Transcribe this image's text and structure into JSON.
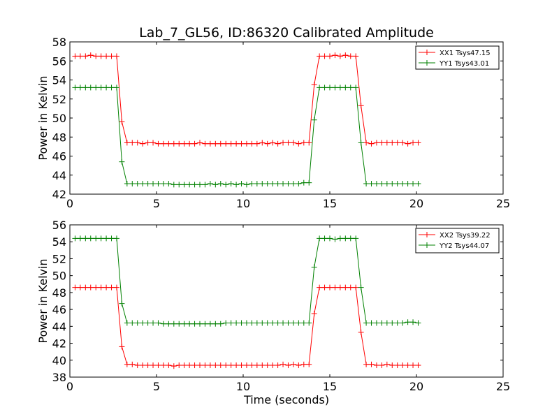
{
  "figure": {
    "title": "Lab_7_GL56, ID:86320 Calibrated Amplitude",
    "xlabel": "Time (seconds)"
  },
  "chart_data": [
    {
      "type": "line",
      "title": "Lab_7_GL56, ID:86320 Calibrated Amplitude",
      "xlabel": "",
      "ylabel": "Power in Kelvin",
      "xlim": [
        0,
        25
      ],
      "ylim": [
        42,
        58
      ],
      "xticks": [
        0,
        5,
        10,
        15,
        20,
        25
      ],
      "yticks": [
        42,
        44,
        46,
        48,
        50,
        52,
        54,
        56,
        58
      ],
      "grid": false,
      "legend": "top-right",
      "marker": "+",
      "x": [
        0.3,
        0.6,
        0.9,
        1.2,
        1.5,
        1.8,
        2.1,
        2.4,
        2.7,
        3.0,
        3.3,
        3.6,
        3.9,
        4.2,
        4.5,
        4.8,
        5.1,
        5.4,
        5.7,
        6.0,
        6.3,
        6.6,
        6.9,
        7.2,
        7.5,
        7.8,
        8.1,
        8.4,
        8.7,
        9.0,
        9.3,
        9.6,
        9.9,
        10.2,
        10.5,
        10.8,
        11.1,
        11.4,
        11.7,
        12.0,
        12.3,
        12.6,
        12.9,
        13.2,
        13.5,
        13.8,
        14.1,
        14.4,
        14.7,
        15.0,
        15.3,
        15.6,
        15.9,
        16.2,
        16.5,
        16.8,
        17.1,
        17.4,
        17.7,
        18.0,
        18.3,
        18.6,
        18.9,
        19.2,
        19.5,
        19.8,
        20.1
      ],
      "series": [
        {
          "name": "XX1 Tsys47.15",
          "color": "#ff0000",
          "values": [
            56.5,
            56.5,
            56.5,
            56.6,
            56.5,
            56.5,
            56.5,
            56.5,
            56.5,
            49.6,
            47.4,
            47.4,
            47.4,
            47.3,
            47.4,
            47.4,
            47.3,
            47.3,
            47.3,
            47.3,
            47.3,
            47.3,
            47.3,
            47.3,
            47.4,
            47.3,
            47.3,
            47.3,
            47.3,
            47.3,
            47.3,
            47.3,
            47.3,
            47.3,
            47.3,
            47.3,
            47.4,
            47.3,
            47.4,
            47.3,
            47.4,
            47.4,
            47.4,
            47.3,
            47.4,
            47.4,
            53.5,
            56.5,
            56.5,
            56.5,
            56.6,
            56.5,
            56.6,
            56.5,
            56.5,
            51.3,
            47.4,
            47.3,
            47.4,
            47.4,
            47.4,
            47.4,
            47.4,
            47.4,
            47.3,
            47.4,
            47.4
          ]
        },
        {
          "name": "YY1 Tsys43.01",
          "color": "#008000",
          "values": [
            53.2,
            53.2,
            53.2,
            53.2,
            53.2,
            53.2,
            53.2,
            53.2,
            53.2,
            45.4,
            43.1,
            43.1,
            43.1,
            43.1,
            43.1,
            43.1,
            43.1,
            43.1,
            43.1,
            43.0,
            43.0,
            43.0,
            43.0,
            43.0,
            43.0,
            43.0,
            43.1,
            43.0,
            43.1,
            43.0,
            43.1,
            43.0,
            43.1,
            43.0,
            43.1,
            43.1,
            43.1,
            43.1,
            43.1,
            43.1,
            43.1,
            43.1,
            43.1,
            43.1,
            43.2,
            43.2,
            49.8,
            53.2,
            53.2,
            53.2,
            53.2,
            53.2,
            53.2,
            53.2,
            53.2,
            47.4,
            43.1,
            43.1,
            43.1,
            43.1,
            43.1,
            43.1,
            43.1,
            43.1,
            43.1,
            43.1,
            43.1
          ]
        }
      ]
    },
    {
      "type": "line",
      "title": "",
      "xlabel": "Time (seconds)",
      "ylabel": "Power in Kelvin",
      "xlim": [
        0,
        25
      ],
      "ylim": [
        38,
        56
      ],
      "xticks": [
        0,
        5,
        10,
        15,
        20,
        25
      ],
      "yticks": [
        38,
        40,
        42,
        44,
        46,
        48,
        50,
        52,
        54,
        56
      ],
      "grid": false,
      "legend": "top-right",
      "marker": "+",
      "x": [
        0.3,
        0.6,
        0.9,
        1.2,
        1.5,
        1.8,
        2.1,
        2.4,
        2.7,
        3.0,
        3.3,
        3.6,
        3.9,
        4.2,
        4.5,
        4.8,
        5.1,
        5.4,
        5.7,
        6.0,
        6.3,
        6.6,
        6.9,
        7.2,
        7.5,
        7.8,
        8.1,
        8.4,
        8.7,
        9.0,
        9.3,
        9.6,
        9.9,
        10.2,
        10.5,
        10.8,
        11.1,
        11.4,
        11.7,
        12.0,
        12.3,
        12.6,
        12.9,
        13.2,
        13.5,
        13.8,
        14.1,
        14.4,
        14.7,
        15.0,
        15.3,
        15.6,
        15.9,
        16.2,
        16.5,
        16.8,
        17.1,
        17.4,
        17.7,
        18.0,
        18.3,
        18.6,
        18.9,
        19.2,
        19.5,
        19.8,
        20.1
      ],
      "series": [
        {
          "name": "XX2 Tsys39.22",
          "color": "#ff0000",
          "values": [
            48.6,
            48.6,
            48.6,
            48.6,
            48.6,
            48.6,
            48.6,
            48.6,
            48.6,
            41.6,
            39.5,
            39.5,
            39.4,
            39.4,
            39.4,
            39.4,
            39.4,
            39.4,
            39.4,
            39.3,
            39.4,
            39.4,
            39.4,
            39.4,
            39.4,
            39.4,
            39.4,
            39.4,
            39.4,
            39.4,
            39.4,
            39.4,
            39.4,
            39.4,
            39.4,
            39.4,
            39.4,
            39.4,
            39.4,
            39.4,
            39.5,
            39.4,
            39.5,
            39.4,
            39.5,
            39.5,
            45.5,
            48.6,
            48.6,
            48.6,
            48.6,
            48.6,
            48.6,
            48.6,
            48.6,
            43.3,
            39.5,
            39.5,
            39.4,
            39.4,
            39.5,
            39.4,
            39.4,
            39.4,
            39.4,
            39.4,
            39.4
          ]
        },
        {
          "name": "YY2 Tsys44.07",
          "color": "#008000",
          "values": [
            54.4,
            54.4,
            54.4,
            54.4,
            54.4,
            54.4,
            54.4,
            54.4,
            54.4,
            46.7,
            44.4,
            44.4,
            44.4,
            44.4,
            44.4,
            44.4,
            44.4,
            44.3,
            44.3,
            44.3,
            44.3,
            44.3,
            44.3,
            44.3,
            44.3,
            44.3,
            44.3,
            44.3,
            44.3,
            44.4,
            44.4,
            44.4,
            44.4,
            44.4,
            44.4,
            44.4,
            44.4,
            44.4,
            44.4,
            44.4,
            44.4,
            44.4,
            44.4,
            44.4,
            44.4,
            44.4,
            51.0,
            54.4,
            54.4,
            54.4,
            54.3,
            54.4,
            54.4,
            54.4,
            54.4,
            48.6,
            44.4,
            44.4,
            44.4,
            44.4,
            44.4,
            44.4,
            44.4,
            44.4,
            44.5,
            44.5,
            44.4
          ]
        }
      ]
    }
  ]
}
